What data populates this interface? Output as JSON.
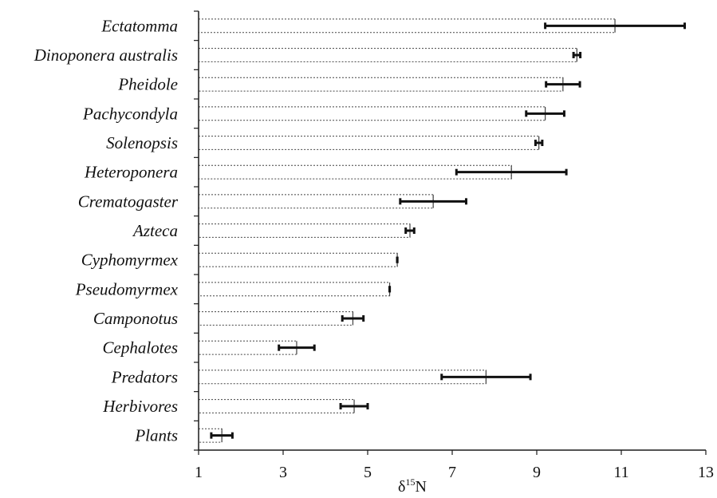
{
  "chart_data": {
    "type": "bar",
    "orientation": "horizontal",
    "categories": [
      "Ectatomma",
      "Dinoponera australis",
      "Pheidole",
      "Pachycondyla",
      "Solenopsis",
      "Heteroponera",
      "Crematogaster",
      "Azteca",
      "Cyphomyrmex",
      "Pseudomyrmex",
      "Camponotus",
      "Cephalotes",
      "Predators",
      "Herbivores",
      "Plants"
    ],
    "values": [
      10.85,
      9.95,
      9.62,
      9.2,
      9.05,
      8.4,
      6.55,
      6.0,
      5.7,
      5.52,
      4.65,
      3.32,
      7.8,
      4.68,
      1.55
    ],
    "errors": [
      1.65,
      0.08,
      0.4,
      0.45,
      0.08,
      1.3,
      0.78,
      0.1,
      0.0,
      0.0,
      0.25,
      0.42,
      1.05,
      0.32,
      0.25
    ],
    "xlabel": {
      "symbol": "δ",
      "superscript": "15",
      "element": "N"
    },
    "xlim": [
      1,
      13
    ],
    "xticks": [
      "1",
      "3",
      "5",
      "7",
      "9",
      "11",
      "13"
    ],
    "ylabel": "",
    "title": "",
    "grid": false,
    "legend": "none",
    "bar_fill": "dotted-outline",
    "colors": {
      "axis": "#1a1a1a",
      "bar_outline": "#444444",
      "error_bar": "#111111",
      "text": "#111111"
    }
  }
}
